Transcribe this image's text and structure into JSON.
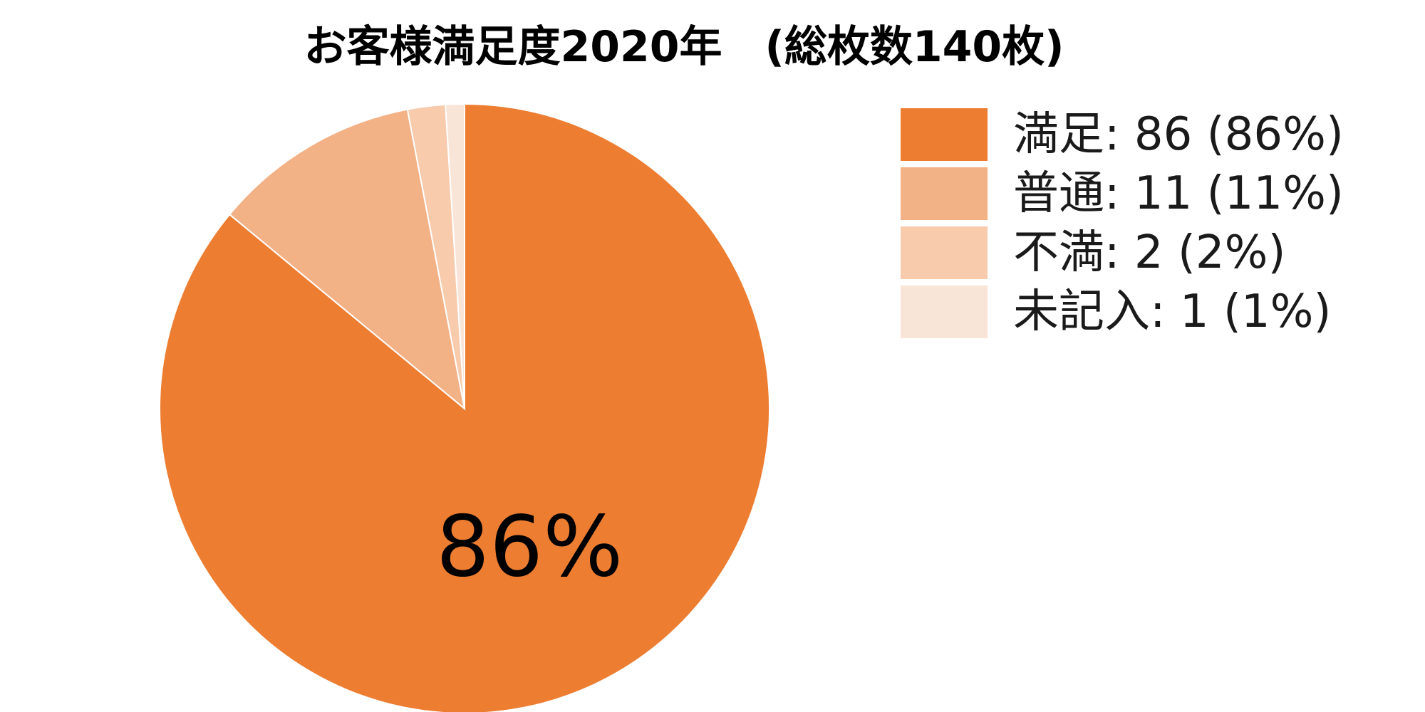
{
  "chart_data": {
    "type": "pie",
    "title": "お客様満足度2020年　(総枚数140枚)",
    "categories": [
      "満足",
      "普通",
      "不満",
      "未記入"
    ],
    "values": [
      86,
      11,
      2,
      1
    ],
    "percentages": [
      86,
      11,
      2,
      1
    ],
    "colors": [
      "#ED7D31",
      "#F3B186",
      "#F7CBAC",
      "#F9E4D8"
    ],
    "legend": [
      "満足: 86 (86%)",
      "普通: 11 (11%)",
      "不満: 2 (2%)",
      "未記入: 1 (1%)"
    ],
    "slice_labels": [
      "86%",
      "",
      "",
      ""
    ],
    "legend_position": "right",
    "start": "top",
    "direction": "clockwise"
  }
}
